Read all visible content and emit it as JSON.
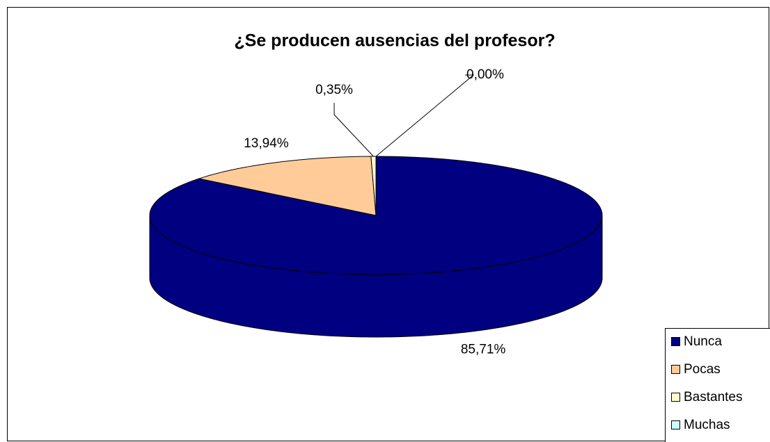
{
  "chart_data": {
    "type": "pie3d",
    "title": "¿Se producen ausencias del profesor?",
    "categories": [
      "Nunca",
      "Pocas",
      "Bastantes",
      "Muchas"
    ],
    "values": [
      85.71,
      13.94,
      0.35,
      0.0
    ],
    "value_labels": [
      "85,71%",
      "13,94%",
      "0,35%",
      "0,00%"
    ],
    "colors": [
      "#000080",
      "#ffcc99",
      "#ffffcc",
      "#ccffff"
    ],
    "legend": "right"
  }
}
